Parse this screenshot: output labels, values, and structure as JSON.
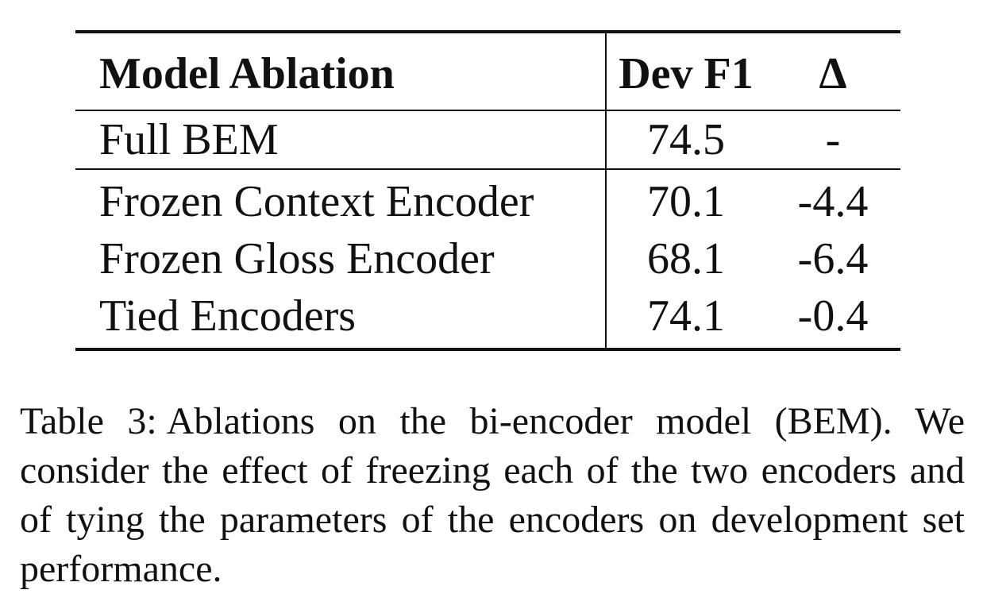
{
  "table": {
    "headers": {
      "model": "Model Ablation",
      "dev": "Dev F1",
      "delta": "Δ"
    },
    "rows": [
      {
        "model": "Full BEM",
        "dev": "74.5",
        "delta": "-"
      },
      {
        "model": "Frozen Context Encoder",
        "dev": "70.1",
        "delta": "-4.4"
      },
      {
        "model": "Frozen Gloss Encoder",
        "dev": "68.1",
        "delta": "-6.4"
      },
      {
        "model": "Tied Encoders",
        "dev": "74.1",
        "delta": "-0.4"
      }
    ]
  },
  "caption": {
    "label": "Table 3:",
    "text": "Ablations on the bi-encoder model (BEM). We consider the effect of freezing each of the two encoders and of tying the parameters of the encoders on development set performance."
  }
}
